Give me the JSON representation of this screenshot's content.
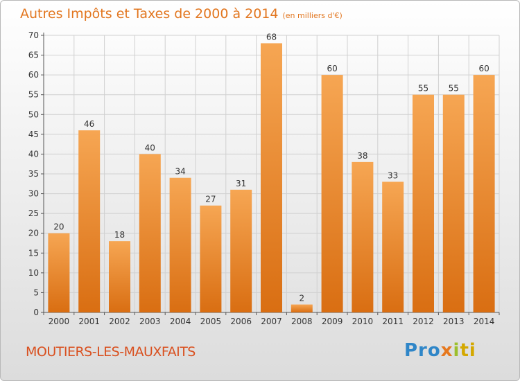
{
  "header": {
    "title": "Autres Impôts et Taxes de 2000 à 2014",
    "unit": "(en milliers d'€)"
  },
  "footer": {
    "commune": "MOUTIERS-LES-MAUXFAITS",
    "logo": {
      "text": "Proxiti",
      "parts": [
        "Pro",
        "x",
        "i",
        "ti"
      ],
      "colors": [
        "#2f86c8",
        "#e6781e",
        "#9cbf2d",
        "#d4a800"
      ]
    }
  },
  "colors": {
    "bar_top": "#f6a653",
    "bar_bottom": "#d96e12",
    "title": "#e2761f",
    "commune": "#d9501f"
  },
  "chart_data": {
    "type": "bar",
    "categories": [
      "2000",
      "2001",
      "2002",
      "2003",
      "2004",
      "2005",
      "2006",
      "2007",
      "2008",
      "2009",
      "2010",
      "2011",
      "2012",
      "2013",
      "2014"
    ],
    "values": [
      20,
      46,
      18,
      40,
      34,
      27,
      31,
      68,
      2,
      60,
      38,
      33,
      55,
      55,
      60
    ],
    "ylim": [
      0,
      70
    ],
    "yticks": [
      0,
      5,
      10,
      15,
      20,
      25,
      30,
      35,
      40,
      45,
      50,
      55,
      60,
      65,
      70
    ],
    "grid": true,
    "legend": "none",
    "data_labels": true
  }
}
